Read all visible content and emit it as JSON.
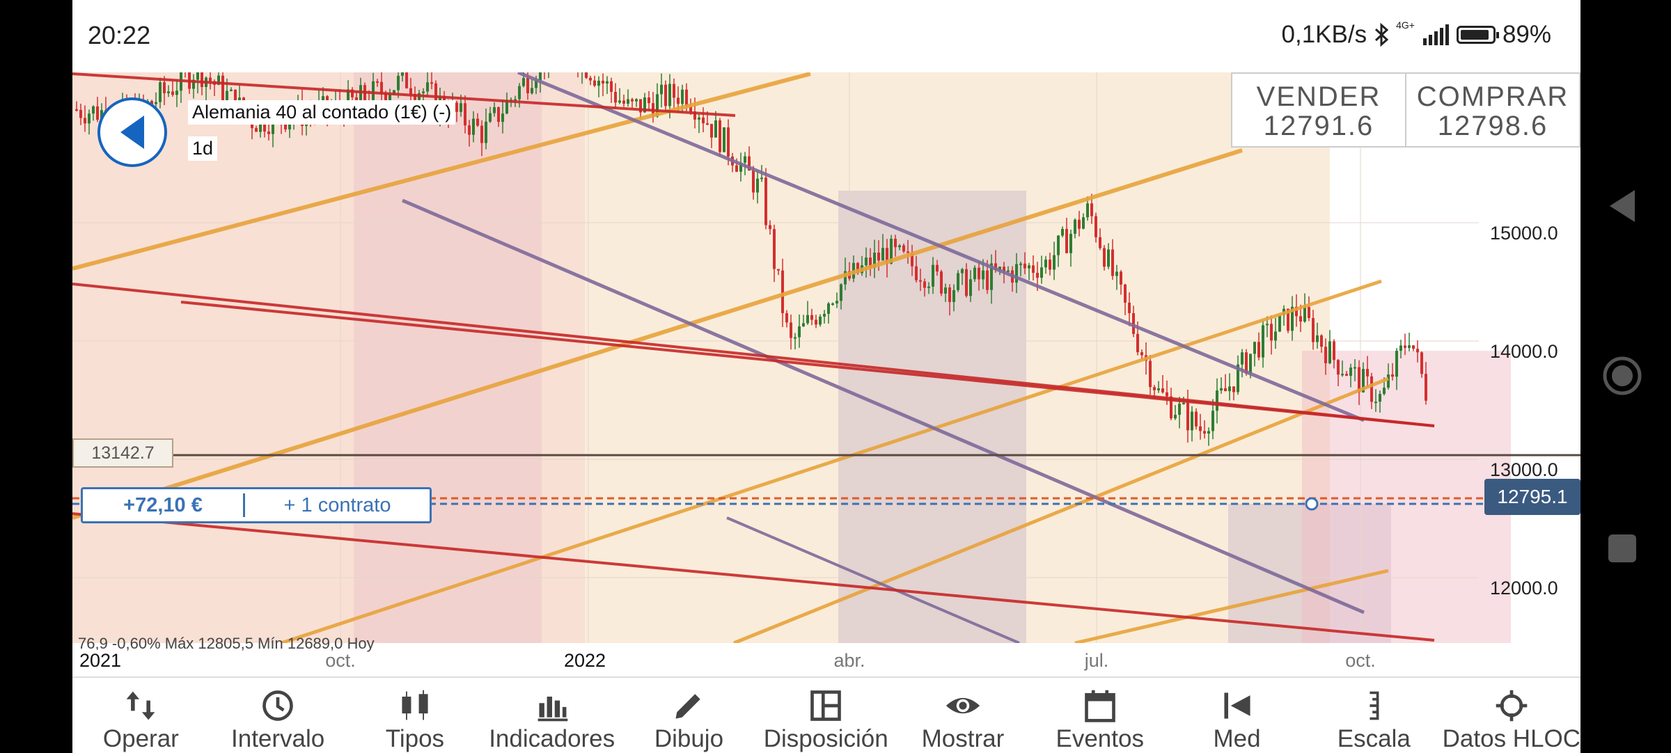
{
  "status_bar": {
    "time": "20:22",
    "net_speed": "0,1KB/s",
    "network": "4G+",
    "battery": "89%"
  },
  "chart": {
    "instrument": "Alemania 40 al contado (1€) (-)",
    "interval": "1d",
    "sell_label": "VENDER",
    "sell_price": "12791.6",
    "buy_label": "COMPRAR",
    "buy_price": "12798.6",
    "price_level": "13142.7",
    "position_pnl": "+72,10 €",
    "position_size": "+ 1 contrato",
    "last_price": "12795.1",
    "y_ticks": [
      "15000.0",
      "14000.0",
      "13000.0",
      "12000.0"
    ],
    "x_ticks": [
      {
        "label": "2021",
        "year": true
      },
      {
        "label": "oct.",
        "year": false
      },
      {
        "label": "2022",
        "year": true
      },
      {
        "label": "abr.",
        "year": false
      },
      {
        "label": "jul.",
        "year": false
      },
      {
        "label": "oct.",
        "year": false
      }
    ],
    "info_strip": "76,9     -0,60%     Máx 12805,5   Mín 12689,0   Hoy"
  },
  "toolbar": [
    {
      "label": "Operar",
      "icon": "trade-arrows-icon"
    },
    {
      "label": "Intervalo",
      "icon": "clock-icon"
    },
    {
      "label": "Tipos",
      "icon": "candles-icon"
    },
    {
      "label": "Indicadores",
      "icon": "bar-chart-icon"
    },
    {
      "label": "Dibujo",
      "icon": "pencil-icon"
    },
    {
      "label": "Disposición",
      "icon": "layout-icon"
    },
    {
      "label": "Mostrar",
      "icon": "eye-icon"
    },
    {
      "label": "Eventos",
      "icon": "calendar-icon"
    },
    {
      "label": "Med",
      "icon": "measure-icon"
    },
    {
      "label": "Escala",
      "icon": "scale-icon"
    },
    {
      "label": "Datos HLOC",
      "icon": "crosshair-icon"
    }
  ],
  "colors": {
    "up": "#2e7d32",
    "down": "#d32f2f",
    "channel_orange": "#e8a33b",
    "channel_red": "#c62828",
    "channel_purple": "#7e6a9a",
    "accent": "#3b72b5"
  }
}
